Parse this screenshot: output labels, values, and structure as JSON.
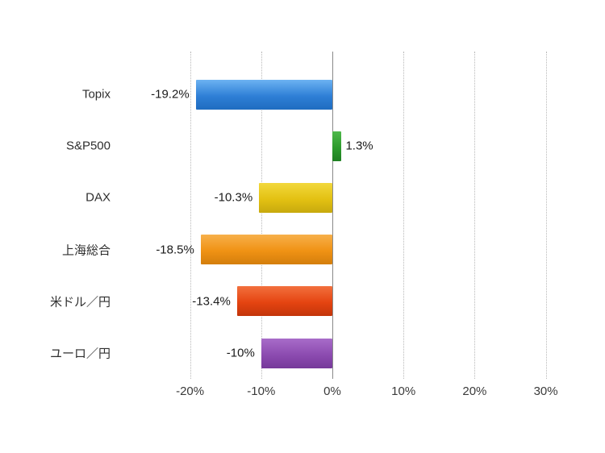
{
  "chart_data": {
    "type": "bar",
    "orientation": "horizontal",
    "title": "",
    "xlabel": "",
    "ylabel": "",
    "categories": [
      "Topix",
      "S&P500",
      "DAX",
      "上海総合",
      "米ドル／円",
      "ユーロ／円"
    ],
    "values": [
      -19.2,
      1.3,
      -10.3,
      -18.5,
      -13.4,
      -10
    ],
    "value_labels": [
      "-19.2%",
      "1.3%",
      "-10.3%",
      "-18.5%",
      "-13.4%",
      "-10%"
    ],
    "bar_colors": [
      {
        "light": "#6cb2f2",
        "base": "#2e7fd6",
        "dark": "#1f6cc0"
      },
      {
        "light": "#4eb84a",
        "base": "#2d9b2d",
        "dark": "#1f7f22"
      },
      {
        "light": "#f2d83c",
        "base": "#e3c112",
        "dark": "#c7a90e"
      },
      {
        "light": "#f7b04a",
        "base": "#f09214",
        "dark": "#d37e0c"
      },
      {
        "light": "#f2703d",
        "base": "#e54411",
        "dark": "#c2350a"
      },
      {
        "light": "#a86cc9",
        "base": "#8c4bb0",
        "dark": "#76399a"
      }
    ],
    "x_ticks": [
      -20,
      -10,
      0,
      10,
      20,
      30
    ],
    "x_tick_labels": [
      "-20%",
      "-10%",
      "0%",
      "10%",
      "20%",
      "30%"
    ],
    "xlim": [
      -30,
      35
    ],
    "grid": "dotted-vertical",
    "legend": "none",
    "background": "#ffffff"
  }
}
